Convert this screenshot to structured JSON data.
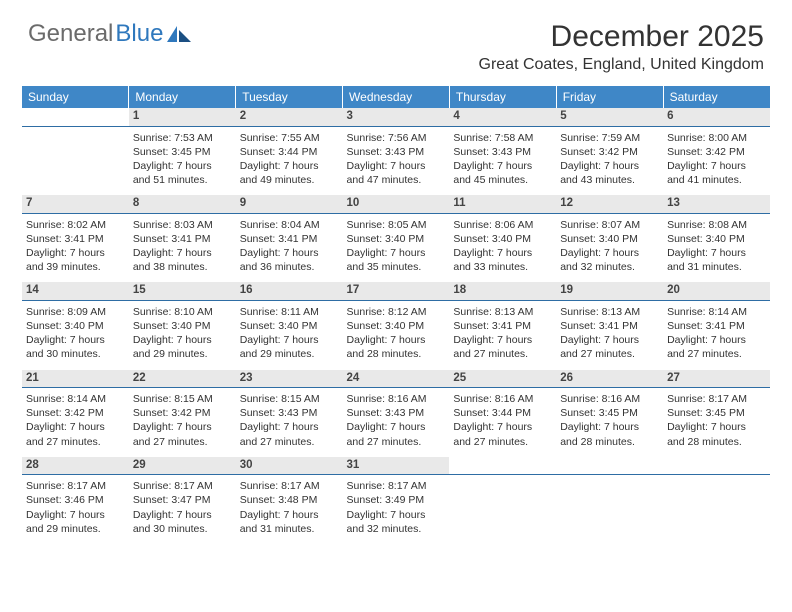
{
  "logo": {
    "part1": "General",
    "part2": "Blue"
  },
  "title": "December 2025",
  "location": "Great Coates, England, United Kingdom",
  "colors": {
    "header_bg": "#3f87c7",
    "header_text": "#ffffff",
    "daynum_bg": "#e9e9e9",
    "daynum_border": "#2e6da4",
    "body_text": "#333333",
    "logo_gray": "#6b6b6b",
    "logo_blue": "#2f78bd"
  },
  "weekdays": [
    "Sunday",
    "Monday",
    "Tuesday",
    "Wednesday",
    "Thursday",
    "Friday",
    "Saturday"
  ],
  "weeks": [
    [
      null,
      {
        "n": "1",
        "sr": "Sunrise: 7:53 AM",
        "ss": "Sunset: 3:45 PM",
        "dl": "Daylight: 7 hours and 51 minutes."
      },
      {
        "n": "2",
        "sr": "Sunrise: 7:55 AM",
        "ss": "Sunset: 3:44 PM",
        "dl": "Daylight: 7 hours and 49 minutes."
      },
      {
        "n": "3",
        "sr": "Sunrise: 7:56 AM",
        "ss": "Sunset: 3:43 PM",
        "dl": "Daylight: 7 hours and 47 minutes."
      },
      {
        "n": "4",
        "sr": "Sunrise: 7:58 AM",
        "ss": "Sunset: 3:43 PM",
        "dl": "Daylight: 7 hours and 45 minutes."
      },
      {
        "n": "5",
        "sr": "Sunrise: 7:59 AM",
        "ss": "Sunset: 3:42 PM",
        "dl": "Daylight: 7 hours and 43 minutes."
      },
      {
        "n": "6",
        "sr": "Sunrise: 8:00 AM",
        "ss": "Sunset: 3:42 PM",
        "dl": "Daylight: 7 hours and 41 minutes."
      }
    ],
    [
      {
        "n": "7",
        "sr": "Sunrise: 8:02 AM",
        "ss": "Sunset: 3:41 PM",
        "dl": "Daylight: 7 hours and 39 minutes."
      },
      {
        "n": "8",
        "sr": "Sunrise: 8:03 AM",
        "ss": "Sunset: 3:41 PM",
        "dl": "Daylight: 7 hours and 38 minutes."
      },
      {
        "n": "9",
        "sr": "Sunrise: 8:04 AM",
        "ss": "Sunset: 3:41 PM",
        "dl": "Daylight: 7 hours and 36 minutes."
      },
      {
        "n": "10",
        "sr": "Sunrise: 8:05 AM",
        "ss": "Sunset: 3:40 PM",
        "dl": "Daylight: 7 hours and 35 minutes."
      },
      {
        "n": "11",
        "sr": "Sunrise: 8:06 AM",
        "ss": "Sunset: 3:40 PM",
        "dl": "Daylight: 7 hours and 33 minutes."
      },
      {
        "n": "12",
        "sr": "Sunrise: 8:07 AM",
        "ss": "Sunset: 3:40 PM",
        "dl": "Daylight: 7 hours and 32 minutes."
      },
      {
        "n": "13",
        "sr": "Sunrise: 8:08 AM",
        "ss": "Sunset: 3:40 PM",
        "dl": "Daylight: 7 hours and 31 minutes."
      }
    ],
    [
      {
        "n": "14",
        "sr": "Sunrise: 8:09 AM",
        "ss": "Sunset: 3:40 PM",
        "dl": "Daylight: 7 hours and 30 minutes."
      },
      {
        "n": "15",
        "sr": "Sunrise: 8:10 AM",
        "ss": "Sunset: 3:40 PM",
        "dl": "Daylight: 7 hours and 29 minutes."
      },
      {
        "n": "16",
        "sr": "Sunrise: 8:11 AM",
        "ss": "Sunset: 3:40 PM",
        "dl": "Daylight: 7 hours and 29 minutes."
      },
      {
        "n": "17",
        "sr": "Sunrise: 8:12 AM",
        "ss": "Sunset: 3:40 PM",
        "dl": "Daylight: 7 hours and 28 minutes."
      },
      {
        "n": "18",
        "sr": "Sunrise: 8:13 AM",
        "ss": "Sunset: 3:41 PM",
        "dl": "Daylight: 7 hours and 27 minutes."
      },
      {
        "n": "19",
        "sr": "Sunrise: 8:13 AM",
        "ss": "Sunset: 3:41 PM",
        "dl": "Daylight: 7 hours and 27 minutes."
      },
      {
        "n": "20",
        "sr": "Sunrise: 8:14 AM",
        "ss": "Sunset: 3:41 PM",
        "dl": "Daylight: 7 hours and 27 minutes."
      }
    ],
    [
      {
        "n": "21",
        "sr": "Sunrise: 8:14 AM",
        "ss": "Sunset: 3:42 PM",
        "dl": "Daylight: 7 hours and 27 minutes."
      },
      {
        "n": "22",
        "sr": "Sunrise: 8:15 AM",
        "ss": "Sunset: 3:42 PM",
        "dl": "Daylight: 7 hours and 27 minutes."
      },
      {
        "n": "23",
        "sr": "Sunrise: 8:15 AM",
        "ss": "Sunset: 3:43 PM",
        "dl": "Daylight: 7 hours and 27 minutes."
      },
      {
        "n": "24",
        "sr": "Sunrise: 8:16 AM",
        "ss": "Sunset: 3:43 PM",
        "dl": "Daylight: 7 hours and 27 minutes."
      },
      {
        "n": "25",
        "sr": "Sunrise: 8:16 AM",
        "ss": "Sunset: 3:44 PM",
        "dl": "Daylight: 7 hours and 27 minutes."
      },
      {
        "n": "26",
        "sr": "Sunrise: 8:16 AM",
        "ss": "Sunset: 3:45 PM",
        "dl": "Daylight: 7 hours and 28 minutes."
      },
      {
        "n": "27",
        "sr": "Sunrise: 8:17 AM",
        "ss": "Sunset: 3:45 PM",
        "dl": "Daylight: 7 hours and 28 minutes."
      }
    ],
    [
      {
        "n": "28",
        "sr": "Sunrise: 8:17 AM",
        "ss": "Sunset: 3:46 PM",
        "dl": "Daylight: 7 hours and 29 minutes."
      },
      {
        "n": "29",
        "sr": "Sunrise: 8:17 AM",
        "ss": "Sunset: 3:47 PM",
        "dl": "Daylight: 7 hours and 30 minutes."
      },
      {
        "n": "30",
        "sr": "Sunrise: 8:17 AM",
        "ss": "Sunset: 3:48 PM",
        "dl": "Daylight: 7 hours and 31 minutes."
      },
      {
        "n": "31",
        "sr": "Sunrise: 8:17 AM",
        "ss": "Sunset: 3:49 PM",
        "dl": "Daylight: 7 hours and 32 minutes."
      },
      null,
      null,
      null
    ]
  ]
}
